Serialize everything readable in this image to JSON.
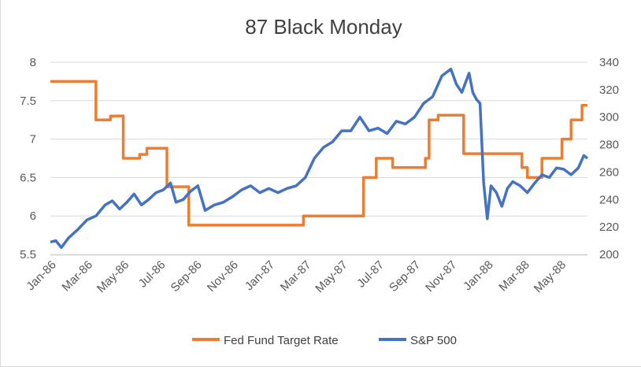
{
  "chart_data": {
    "type": "line",
    "title": "87 Black Monday",
    "categories": [
      "Jan-86",
      "Mar-86",
      "May-86",
      "Jul-86",
      "Sep-86",
      "Nov-86",
      "Jan-87",
      "Mar-87",
      "May-87",
      "Jul-87",
      "Sep-87",
      "Nov-87",
      "Jan-88",
      "Mar-88",
      "May-88"
    ],
    "x_range": [
      0,
      29.5
    ],
    "y_left": {
      "min": 5.5,
      "max": 8,
      "ticks": [
        "5.5",
        "6",
        "6.5",
        "7",
        "7.5",
        "8"
      ]
    },
    "y_right": {
      "min": 200,
      "max": 340,
      "ticks": [
        "200",
        "220",
        "240",
        "260",
        "280",
        "300",
        "320",
        "340"
      ]
    },
    "grid": "horizontal",
    "legend_position": "bottom",
    "series": [
      {
        "name": "Fed Fund Target Rate",
        "axis": "left",
        "color": "#ED7D31",
        "step": true,
        "points": [
          [
            0,
            7.75
          ],
          [
            2.5,
            7.75
          ],
          [
            2.5,
            7.25
          ],
          [
            3.3,
            7.25
          ],
          [
            3.3,
            7.3
          ],
          [
            4.0,
            7.3
          ],
          [
            4.0,
            6.75
          ],
          [
            4.9,
            6.75
          ],
          [
            4.9,
            6.8
          ],
          [
            5.3,
            6.8
          ],
          [
            5.3,
            6.88
          ],
          [
            6.4,
            6.88
          ],
          [
            6.4,
            6.38
          ],
          [
            7.6,
            6.38
          ],
          [
            7.6,
            5.88
          ],
          [
            13.9,
            5.88
          ],
          [
            13.9,
            6.0
          ],
          [
            17.2,
            6.0
          ],
          [
            17.2,
            6.5
          ],
          [
            17.9,
            6.5
          ],
          [
            17.9,
            6.75
          ],
          [
            18.8,
            6.75
          ],
          [
            18.8,
            6.63
          ],
          [
            20.6,
            6.63
          ],
          [
            20.6,
            6.75
          ],
          [
            20.8,
            6.75
          ],
          [
            20.8,
            7.25
          ],
          [
            21.3,
            7.25
          ],
          [
            21.3,
            7.31
          ],
          [
            22.7,
            7.31
          ],
          [
            22.7,
            6.81
          ],
          [
            25.9,
            6.81
          ],
          [
            25.9,
            6.63
          ],
          [
            26.2,
            6.63
          ],
          [
            26.2,
            6.5
          ],
          [
            27.0,
            6.5
          ],
          [
            27.0,
            6.75
          ],
          [
            28.1,
            6.75
          ],
          [
            28.1,
            7.0
          ],
          [
            28.6,
            7.0
          ],
          [
            28.6,
            7.25
          ],
          [
            29.2,
            7.25
          ],
          [
            29.2,
            7.44
          ],
          [
            29.5,
            7.44
          ]
        ]
      },
      {
        "name": "S&P 500",
        "axis": "right",
        "color": "#4472C4",
        "points": [
          [
            0,
            209
          ],
          [
            0.3,
            210
          ],
          [
            0.6,
            205
          ],
          [
            1.0,
            212
          ],
          [
            1.5,
            218
          ],
          [
            2.0,
            225
          ],
          [
            2.5,
            228
          ],
          [
            3.0,
            236
          ],
          [
            3.4,
            239
          ],
          [
            3.8,
            233
          ],
          [
            4.2,
            238
          ],
          [
            4.6,
            244
          ],
          [
            5.0,
            236
          ],
          [
            5.4,
            240
          ],
          [
            5.8,
            245
          ],
          [
            6.2,
            247
          ],
          [
            6.6,
            252
          ],
          [
            6.9,
            238
          ],
          [
            7.3,
            240
          ],
          [
            7.7,
            246
          ],
          [
            8.1,
            250
          ],
          [
            8.5,
            232
          ],
          [
            9.0,
            236
          ],
          [
            9.5,
            238
          ],
          [
            10.0,
            242
          ],
          [
            10.5,
            247
          ],
          [
            11.0,
            250
          ],
          [
            11.5,
            245
          ],
          [
            12.0,
            248
          ],
          [
            12.5,
            245
          ],
          [
            13.0,
            248
          ],
          [
            13.5,
            250
          ],
          [
            14.0,
            256
          ],
          [
            14.5,
            270
          ],
          [
            15.0,
            278
          ],
          [
            15.5,
            282
          ],
          [
            16.0,
            290
          ],
          [
            16.5,
            290
          ],
          [
            17.0,
            300
          ],
          [
            17.5,
            290
          ],
          [
            18.0,
            292
          ],
          [
            18.5,
            288
          ],
          [
            19.0,
            297
          ],
          [
            19.5,
            295
          ],
          [
            20.0,
            300
          ],
          [
            20.5,
            310
          ],
          [
            21.0,
            315
          ],
          [
            21.5,
            330
          ],
          [
            22.0,
            335
          ],
          [
            22.3,
            324
          ],
          [
            22.6,
            318
          ],
          [
            23.0,
            332
          ],
          [
            23.2,
            318
          ],
          [
            23.4,
            313
          ],
          [
            23.6,
            310
          ],
          [
            23.8,
            252
          ],
          [
            24.0,
            226
          ],
          [
            24.2,
            250
          ],
          [
            24.5,
            245
          ],
          [
            24.8,
            235
          ],
          [
            25.1,
            248
          ],
          [
            25.4,
            253
          ],
          [
            25.8,
            250
          ],
          [
            26.2,
            245
          ],
          [
            26.6,
            252
          ],
          [
            27.0,
            258
          ],
          [
            27.4,
            256
          ],
          [
            27.8,
            263
          ],
          [
            28.2,
            262
          ],
          [
            28.6,
            258
          ],
          [
            29.0,
            263
          ],
          [
            29.3,
            272
          ],
          [
            29.5,
            270
          ]
        ]
      }
    ]
  }
}
